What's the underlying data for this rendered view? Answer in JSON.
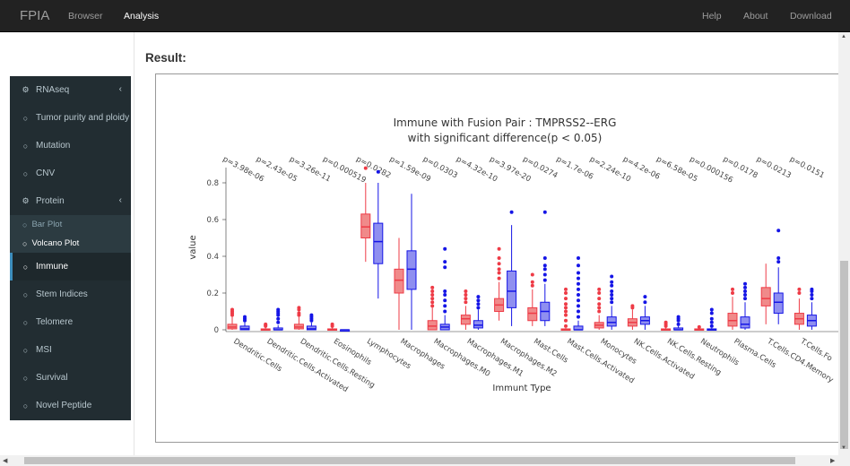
{
  "navbar": {
    "brand": "FPIA",
    "left_links": [
      "Browser",
      "Analysis"
    ],
    "active_link": "Analysis",
    "right_links": [
      "Help",
      "About",
      "Download"
    ]
  },
  "sidebar": {
    "items": [
      {
        "label": "RNAseq",
        "icon": "dashboard-icon",
        "chevron": "‹"
      },
      {
        "label": "Tumor purity and ploidy",
        "icon": "circle-icon"
      },
      {
        "label": "Mutation",
        "icon": "circle-icon"
      },
      {
        "label": "CNV",
        "icon": "circle-icon"
      },
      {
        "label": "Protein",
        "icon": "dashboard-icon",
        "chevron": "‹"
      },
      {
        "label": "Immune",
        "icon": "circle-icon",
        "active": true
      },
      {
        "label": "Stem Indices",
        "icon": "circle-icon"
      },
      {
        "label": "Telomere",
        "icon": "circle-icon"
      },
      {
        "label": "MSI",
        "icon": "circle-icon"
      },
      {
        "label": "Survival",
        "icon": "circle-icon"
      },
      {
        "label": "Novel Peptide",
        "icon": "circle-icon"
      }
    ],
    "protein_subitems": [
      {
        "label": "Bar Plot"
      },
      {
        "label": "Volcano Plot",
        "current": true
      }
    ]
  },
  "result_label": "Result:",
  "colors": {
    "navbar": "#222222",
    "sidebar": "#222d32",
    "group_a": "#ee3b46",
    "group_b": "#1515e6"
  },
  "chart_data": {
    "type": "box",
    "title": "Immune with Fusion Pair : TMPRSS2--ERG",
    "subtitle": "with significant difference(p < 0.05)",
    "xlabel": "Immunt Type",
    "ylabel": "value",
    "ylim": [
      0,
      0.9
    ],
    "yticks": [
      0,
      0.2,
      0.4,
      0.6,
      0.8
    ],
    "grid": false,
    "categories": [
      "Dendritic.Cells",
      "Dendritic.Cells.Activated",
      "Dendritic.Cells.Resting",
      "Eosinophils",
      "Lymphocytes",
      "Macrophages",
      "Macrophages.M0",
      "Macrophages.M1",
      "Macrophages.M2",
      "Mast.Cells",
      "Mast.Cells.Activated",
      "Monocytes",
      "NK.Cells.Activated",
      "NK.Cells.Resting",
      "Neutrophils",
      "Plasma.Cells",
      "T.Cells.CD4.Memory",
      "T.Cells.Fo"
    ],
    "pvalues": [
      "p=3.98e-06",
      "p=2.43e-05",
      "p=3.26e-11",
      "p=0.000519",
      "p=0.0282",
      "p=1.59e-09",
      "p=0.0303",
      "p=4.32e-10",
      "p=3.97e-20",
      "p=0.0274",
      "p=1.7e-06",
      "p=2.24e-10",
      "p=4.2e-06",
      "p=6.58e-05",
      "p=0.000156",
      "p=0.0178",
      "p=0.0213",
      "p=0.0151"
    ],
    "series": [
      {
        "boxes": [
          {
            "min": 0,
            "q1": 0.005,
            "median": 0.015,
            "q3": 0.03,
            "max": 0.07,
            "outliers": [
              0.08,
              0.09,
              0.1,
              0.11
            ]
          },
          {
            "min": 0,
            "q1": 0,
            "median": 0,
            "q3": 0.005,
            "max": 0.015,
            "outliers": [
              0.02,
              0.025,
              0.03
            ]
          },
          {
            "min": 0,
            "q1": 0.005,
            "median": 0.015,
            "q3": 0.03,
            "max": 0.07,
            "outliers": [
              0.08,
              0.09,
              0.11,
              0.12
            ]
          },
          {
            "min": 0,
            "q1": 0,
            "median": 0,
            "q3": 0.005,
            "max": 0.015,
            "outliers": [
              0.02,
              0.03
            ]
          },
          {
            "min": 0.37,
            "q1": 0.5,
            "median": 0.56,
            "q3": 0.63,
            "max": 0.8,
            "outliers": [
              0.88
            ]
          },
          {
            "min": 0,
            "q1": 0.2,
            "median": 0.27,
            "q3": 0.33,
            "max": 0.5,
            "outliers": []
          },
          {
            "min": 0,
            "q1": 0,
            "median": 0.02,
            "q3": 0.05,
            "max": 0.12,
            "outliers": [
              0.13,
              0.15,
              0.17,
              0.19,
              0.21,
              0.23
            ]
          },
          {
            "min": 0,
            "q1": 0.03,
            "median": 0.06,
            "q3": 0.08,
            "max": 0.13,
            "outliers": [
              0.15,
              0.17,
              0.19,
              0.21
            ]
          },
          {
            "min": 0.05,
            "q1": 0.1,
            "median": 0.135,
            "q3": 0.17,
            "max": 0.26,
            "outliers": [
              0.28,
              0.31,
              0.33,
              0.36,
              0.39,
              0.44
            ]
          },
          {
            "min": 0.02,
            "q1": 0.05,
            "median": 0.09,
            "q3": 0.12,
            "max": 0.22,
            "outliers": [
              0.24,
              0.26,
              0.3
            ]
          },
          {
            "min": 0,
            "q1": 0,
            "median": 0,
            "q3": 0.005,
            "max": 0.01,
            "outliers": [
              0.02,
              0.05,
              0.08,
              0.1,
              0.12,
              0.14,
              0.17,
              0.2,
              0.22
            ]
          },
          {
            "min": 0,
            "q1": 0.01,
            "median": 0.025,
            "q3": 0.04,
            "max": 0.08,
            "outliers": [
              0.1,
              0.12,
              0.14,
              0.17,
              0.2,
              0.22
            ]
          },
          {
            "min": 0,
            "q1": 0.02,
            "median": 0.04,
            "q3": 0.06,
            "max": 0.11,
            "outliers": [
              0.12,
              0.13
            ]
          },
          {
            "min": 0,
            "q1": 0,
            "median": 0,
            "q3": 0.005,
            "max": 0.015,
            "outliers": [
              0.02,
              0.03,
              0.04
            ]
          },
          {
            "min": 0,
            "q1": 0,
            "median": 0,
            "q3": 0.005,
            "max": 0.01,
            "outliers": [
              0.015
            ]
          },
          {
            "min": 0,
            "q1": 0.02,
            "median": 0.05,
            "q3": 0.09,
            "max": 0.18,
            "outliers": [
              0.2,
              0.22
            ]
          },
          {
            "min": 0.03,
            "q1": 0.13,
            "median": 0.17,
            "q3": 0.23,
            "max": 0.36,
            "outliers": []
          },
          {
            "min": 0,
            "q1": 0.03,
            "median": 0.06,
            "q3": 0.09,
            "max": 0.17,
            "outliers": [
              0.2,
              0.22
            ]
          }
        ]
      },
      {
        "boxes": [
          {
            "min": 0,
            "q1": 0,
            "median": 0.005,
            "q3": 0.02,
            "max": 0.04,
            "outliers": [
              0.05,
              0.06,
              0.07
            ]
          },
          {
            "min": 0,
            "q1": 0,
            "median": 0,
            "q3": 0.01,
            "max": 0.025,
            "outliers": [
              0.04,
              0.06,
              0.08,
              0.09,
              0.1,
              0.11
            ]
          },
          {
            "min": 0,
            "q1": 0,
            "median": 0.005,
            "q3": 0.02,
            "max": 0.04,
            "outliers": [
              0.05,
              0.06,
              0.07,
              0.08
            ]
          },
          {
            "min": 0,
            "q1": 0,
            "median": 0,
            "q3": 0,
            "max": 0,
            "outliers": []
          },
          {
            "min": 0.17,
            "q1": 0.36,
            "median": 0.48,
            "q3": 0.58,
            "max": 0.8,
            "outliers": [
              0.86
            ]
          },
          {
            "min": 0,
            "q1": 0.22,
            "median": 0.33,
            "q3": 0.43,
            "max": 0.74,
            "outliers": []
          },
          {
            "min": 0,
            "q1": 0,
            "median": 0.015,
            "q3": 0.03,
            "max": 0.08,
            "outliers": [
              0.1,
              0.13,
              0.16,
              0.19,
              0.21,
              0.34,
              0.37,
              0.44
            ]
          },
          {
            "min": 0,
            "q1": 0.01,
            "median": 0.025,
            "q3": 0.05,
            "max": 0.11,
            "outliers": [
              0.12,
              0.14,
              0.16,
              0.18
            ]
          },
          {
            "min": 0.02,
            "q1": 0.12,
            "median": 0.21,
            "q3": 0.32,
            "max": 0.57,
            "outliers": [
              0.64
            ]
          },
          {
            "min": 0.02,
            "q1": 0.05,
            "median": 0.1,
            "q3": 0.15,
            "max": 0.25,
            "outliers": [
              0.27,
              0.3,
              0.33,
              0.35,
              0.39,
              0.64
            ]
          },
          {
            "min": 0,
            "q1": 0,
            "median": 0,
            "q3": 0.02,
            "max": 0.05,
            "outliers": [
              0.07,
              0.1,
              0.13,
              0.16,
              0.19,
              0.22,
              0.25,
              0.28,
              0.31,
              0.35,
              0.39
            ]
          },
          {
            "min": 0,
            "q1": 0.02,
            "median": 0.04,
            "q3": 0.07,
            "max": 0.13,
            "outliers": [
              0.15,
              0.17,
              0.19,
              0.21,
              0.24,
              0.26,
              0.29
            ]
          },
          {
            "min": 0,
            "q1": 0.03,
            "median": 0.05,
            "q3": 0.07,
            "max": 0.13,
            "outliers": [
              0.15,
              0.18
            ]
          },
          {
            "min": 0,
            "q1": 0,
            "median": 0,
            "q3": 0.01,
            "max": 0.02,
            "outliers": [
              0.03,
              0.05,
              0.06,
              0.07
            ]
          },
          {
            "min": 0,
            "q1": 0,
            "median": 0,
            "q3": 0.005,
            "max": 0.01,
            "outliers": [
              0.02,
              0.04,
              0.06,
              0.09,
              0.11
            ]
          },
          {
            "min": 0,
            "q1": 0.01,
            "median": 0.03,
            "q3": 0.07,
            "max": 0.15,
            "outliers": [
              0.17,
              0.19,
              0.21,
              0.23,
              0.25
            ]
          },
          {
            "min": 0.03,
            "q1": 0.09,
            "median": 0.15,
            "q3": 0.2,
            "max": 0.34,
            "outliers": [
              0.37,
              0.39,
              0.54
            ]
          },
          {
            "min": 0,
            "q1": 0.02,
            "median": 0.05,
            "q3": 0.08,
            "max": 0.15,
            "outliers": [
              0.17,
              0.19,
              0.21,
              0.22
            ]
          }
        ]
      }
    ]
  }
}
